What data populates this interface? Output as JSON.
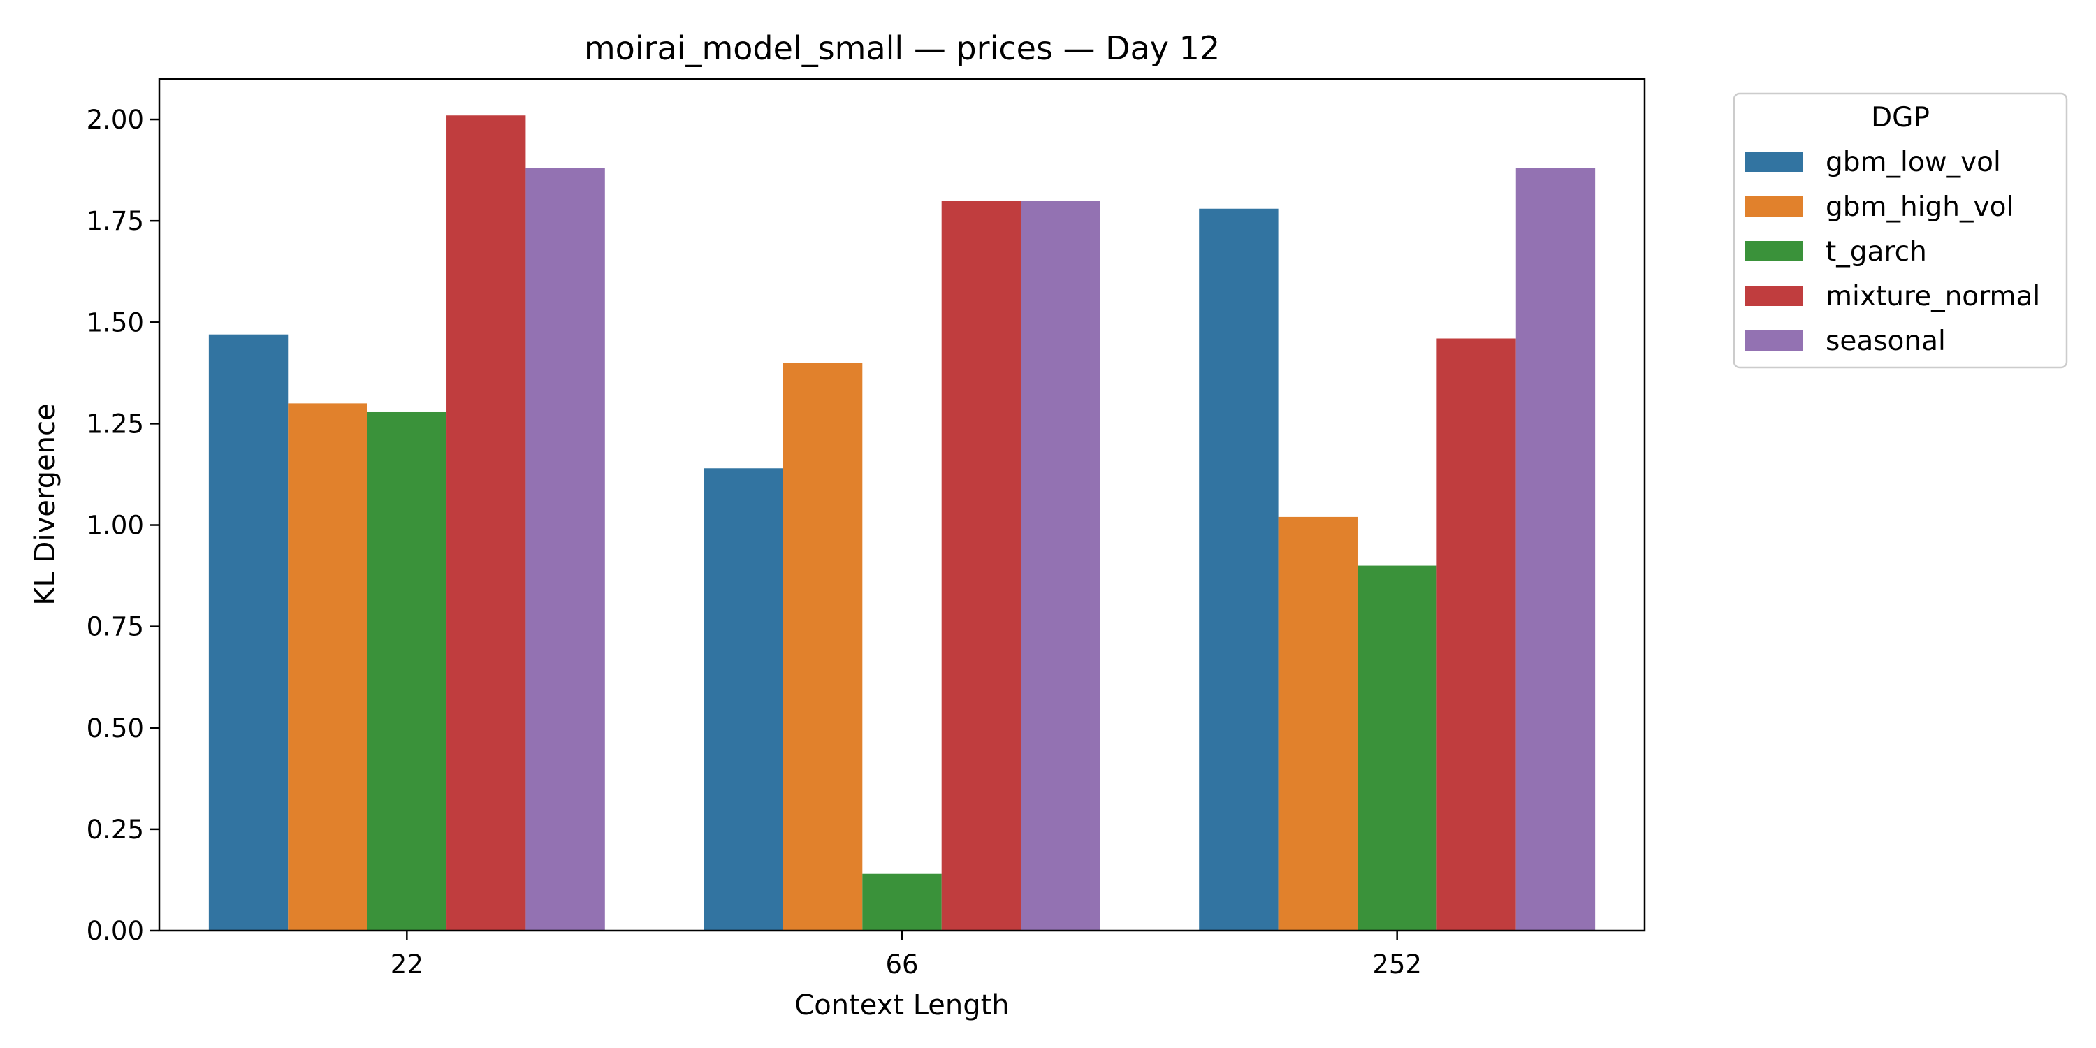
{
  "chart_data": {
    "type": "bar",
    "title": "moirai_model_small — prices — Day 12",
    "xlabel": "Context Length",
    "ylabel": "KL Divergence",
    "categories": [
      "22",
      "66",
      "252"
    ],
    "ylim": [
      0,
      2.1
    ],
    "yticks": [
      "0.00",
      "0.25",
      "0.50",
      "0.75",
      "1.00",
      "1.25",
      "1.50",
      "1.75",
      "2.00"
    ],
    "grid": false,
    "legend": {
      "title": "DGP",
      "placement": "outside-top-right"
    },
    "series": [
      {
        "name": "gbm_low_vol",
        "color": "#3274a1",
        "values": [
          1.47,
          1.14,
          1.78
        ]
      },
      {
        "name": "gbm_high_vol",
        "color": "#e1812c",
        "values": [
          1.3,
          1.4,
          1.02
        ]
      },
      {
        "name": "t_garch",
        "color": "#3a923a",
        "values": [
          1.28,
          0.14,
          0.9
        ]
      },
      {
        "name": "mixture_normal",
        "color": "#c03d3e",
        "values": [
          2.01,
          1.8,
          1.46
        ]
      },
      {
        "name": "seasonal",
        "color": "#9372b2",
        "values": [
          1.88,
          1.8,
          1.88
        ]
      }
    ]
  }
}
